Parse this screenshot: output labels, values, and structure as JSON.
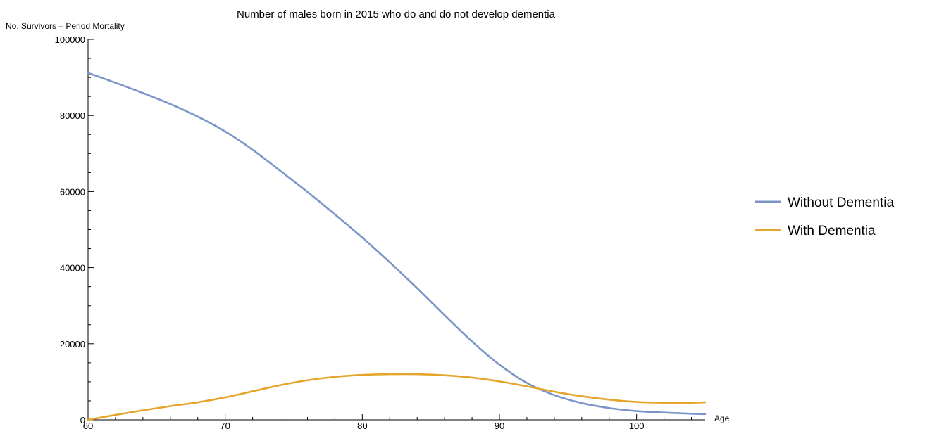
{
  "colors": {
    "without_dementia": "#7b95c9",
    "with_dementia": "#e5a52b"
  },
  "chart_data": {
    "type": "line",
    "title": "Number of males born in 2015 who do and do not develop dementia",
    "xlabel": "Age",
    "ylabel": "No. Survivors – Period Mortality",
    "xlim": [
      60,
      105
    ],
    "ylim": [
      0,
      100000
    ],
    "x_ticks": [
      60,
      70,
      80,
      90,
      100
    ],
    "y_ticks": [
      0,
      20000,
      40000,
      60000,
      80000,
      100000
    ],
    "grid": false,
    "legend_position": "right",
    "series": [
      {
        "name": "Without Dementia",
        "color": "#7b95c9",
        "x": [
          60,
          62,
          64,
          66,
          68,
          70,
          72,
          74,
          76,
          78,
          80,
          82,
          84,
          86,
          88,
          90,
          92,
          94,
          96,
          98,
          100,
          102,
          104,
          105
        ],
        "y": [
          91200,
          88600,
          85900,
          83000,
          79700,
          75800,
          71000,
          65500,
          59900,
          54000,
          47900,
          41400,
          34600,
          27500,
          20600,
          14500,
          9700,
          6500,
          4400,
          3100,
          2300,
          1900,
          1600,
          1500
        ]
      },
      {
        "name": "With Dementia",
        "color": "#e5a52b",
        "x": [
          60,
          62,
          64,
          66,
          68,
          70,
          72,
          74,
          76,
          78,
          80,
          82,
          84,
          86,
          88,
          90,
          92,
          94,
          96,
          98,
          100,
          102,
          104,
          105
        ],
        "y": [
          0,
          1300,
          2500,
          3600,
          4600,
          5900,
          7500,
          9100,
          10400,
          11300,
          11800,
          12000,
          12000,
          11700,
          11100,
          10100,
          8800,
          7400,
          6200,
          5300,
          4700,
          4500,
          4500,
          4600
        ]
      }
    ]
  }
}
